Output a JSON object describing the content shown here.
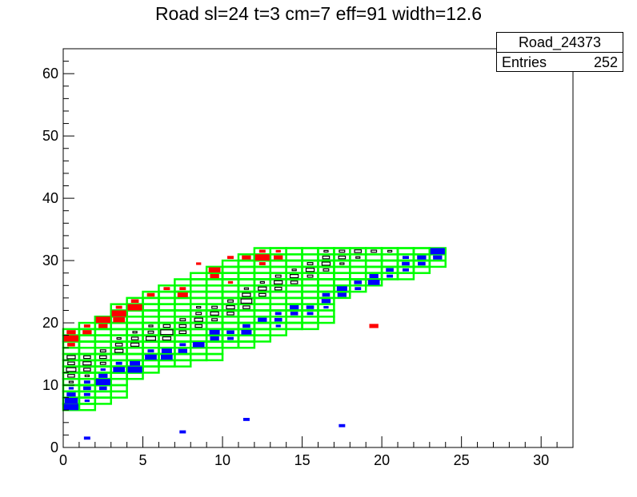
{
  "chart_data": {
    "type": "heatmap",
    "title": "Road sl=24 t=3 cm=7 eff=91 width=12.6",
    "xlabel": "",
    "ylabel": "",
    "xlim": [
      0,
      32
    ],
    "ylim": [
      0,
      64
    ],
    "xticks": [
      0,
      5,
      10,
      15,
      20,
      25,
      30
    ],
    "yticks": [
      0,
      10,
      20,
      30,
      40,
      50,
      60
    ],
    "grid": false,
    "stats": {
      "name": "Road_24373",
      "entries_label": "Entries",
      "entries": "252"
    },
    "road_outline_color": "#00ff00",
    "colors": {
      "red": "#ff0000",
      "blue": "#0000ff",
      "black": "#000000"
    },
    "road_boxes": [
      [
        0,
        6,
        2,
        19
      ],
      [
        1,
        7,
        3,
        20
      ],
      [
        2,
        8,
        4,
        21
      ],
      [
        3,
        11,
        5,
        23
      ],
      [
        4,
        12,
        6,
        24
      ],
      [
        5,
        13,
        7,
        25
      ],
      [
        6,
        13,
        8,
        26
      ],
      [
        7,
        14,
        9,
        27
      ],
      [
        8,
        14,
        10,
        28
      ],
      [
        9,
        16,
        11,
        29
      ],
      [
        10,
        16,
        12,
        30
      ],
      [
        11,
        17,
        13,
        31
      ],
      [
        12,
        18,
        14,
        32
      ],
      [
        13,
        19,
        15,
        32
      ],
      [
        14,
        19,
        16,
        32
      ],
      [
        15,
        20,
        17,
        32
      ],
      [
        16,
        24,
        18,
        32
      ],
      [
        17,
        25,
        19,
        32
      ],
      [
        18,
        26,
        20,
        32
      ],
      [
        19,
        27,
        21,
        32
      ],
      [
        20,
        27,
        22,
        32
      ],
      [
        21,
        28,
        23,
        32
      ],
      [
        22,
        29,
        24,
        32
      ]
    ],
    "red_cells": [
      [
        0.5,
        18,
        0.6
      ],
      [
        0.5,
        17,
        1
      ],
      [
        0.5,
        16,
        0.5
      ],
      [
        1.5,
        19,
        0.4
      ],
      [
        1.5,
        18,
        0.6
      ],
      [
        2.5,
        20,
        1
      ],
      [
        2.5,
        19,
        0.6
      ],
      [
        3.5,
        22,
        0.4
      ],
      [
        3.5,
        21,
        1
      ],
      [
        3.5,
        20,
        0.8
      ],
      [
        4.5,
        23,
        0.5
      ],
      [
        4.5,
        22,
        1
      ],
      [
        5.5,
        24,
        0.5
      ],
      [
        6.5,
        25,
        0.4
      ],
      [
        7.5,
        25,
        0.4
      ],
      [
        7.5,
        24,
        0.7
      ],
      [
        8.5,
        29,
        0.3
      ],
      [
        9.5,
        28,
        0.8
      ],
      [
        9.5,
        27,
        0.6
      ],
      [
        10.5,
        30,
        0.4
      ],
      [
        10.5,
        26,
        0.3
      ],
      [
        11.5,
        30,
        0.6
      ],
      [
        12.5,
        30,
        1
      ],
      [
        12.5,
        29,
        0.4
      ],
      [
        13.5,
        30,
        0.6
      ],
      [
        12.5,
        31,
        0.4
      ],
      [
        13.5,
        31,
        0.3
      ],
      [
        19.5,
        19,
        0.6
      ]
    ],
    "black_cells": [
      [
        0.5,
        14,
        0.6
      ],
      [
        0.5,
        13,
        0.5
      ],
      [
        0.5,
        12,
        0.7
      ],
      [
        0.5,
        11,
        0.5
      ],
      [
        0.5,
        10,
        0.3
      ],
      [
        1.5,
        14,
        0.5
      ],
      [
        1.5,
        13,
        0.6
      ],
      [
        1.5,
        12,
        0.5
      ],
      [
        1.5,
        11,
        0.3
      ],
      [
        2.5,
        15,
        0.4
      ],
      [
        2.5,
        14,
        0.5
      ],
      [
        2.5,
        13,
        0.4
      ],
      [
        3.5,
        17,
        0.3
      ],
      [
        3.5,
        16,
        0.5
      ],
      [
        3.5,
        15,
        0.6
      ],
      [
        4.5,
        18,
        0.3
      ],
      [
        4.5,
        17,
        0.5
      ],
      [
        4.5,
        16,
        0.6
      ],
      [
        5.5,
        19,
        0.3
      ],
      [
        5.5,
        18,
        0.4
      ],
      [
        5.5,
        17,
        0.7
      ],
      [
        6.5,
        19,
        0.5
      ],
      [
        6.5,
        18,
        0.9
      ],
      [
        6.5,
        17,
        0.6
      ],
      [
        7.5,
        20,
        0.4
      ],
      [
        7.5,
        19,
        0.5
      ],
      [
        7.5,
        18,
        0.5
      ],
      [
        8.5,
        22,
        0.3
      ],
      [
        8.5,
        21,
        0.4
      ],
      [
        8.5,
        20,
        0.6
      ],
      [
        8.5,
        19,
        0.5
      ],
      [
        9.5,
        22,
        0.4
      ],
      [
        9.5,
        21,
        0.6
      ],
      [
        9.5,
        20,
        0.4
      ],
      [
        10.5,
        23,
        0.4
      ],
      [
        10.5,
        22,
        0.6
      ],
      [
        10.5,
        21,
        0.5
      ],
      [
        11.5,
        25,
        0.3
      ],
      [
        11.5,
        24,
        0.6
      ],
      [
        11.5,
        23,
        0.8
      ],
      [
        11.5,
        22,
        0.5
      ],
      [
        12.5,
        26,
        0.3
      ],
      [
        12.5,
        25,
        0.6
      ],
      [
        12.5,
        24,
        0.5
      ],
      [
        13.5,
        27,
        0.4
      ],
      [
        13.5,
        26,
        0.6
      ],
      [
        13.5,
        25,
        0.5
      ],
      [
        14.5,
        28,
        0.3
      ],
      [
        14.5,
        27,
        0.6
      ],
      [
        14.5,
        26,
        0.5
      ],
      [
        15.5,
        29,
        0.4
      ],
      [
        15.5,
        28,
        0.6
      ],
      [
        15.5,
        27,
        0.4
      ],
      [
        16.5,
        31,
        0.3
      ],
      [
        16.5,
        30,
        0.5
      ],
      [
        16.5,
        29,
        0.6
      ],
      [
        16.5,
        28,
        0.4
      ],
      [
        17.5,
        31,
        0.4
      ],
      [
        17.5,
        30,
        0.5
      ],
      [
        17.5,
        29,
        0.3
      ],
      [
        18.5,
        31,
        0.5
      ],
      [
        18.5,
        30,
        0.3
      ],
      [
        19.5,
        31,
        0.4
      ],
      [
        20.5,
        31,
        0.3
      ]
    ],
    "blue_cells": [
      [
        0.5,
        9,
        0.3
      ],
      [
        0.5,
        8,
        0.6
      ],
      [
        0.5,
        7,
        0.9
      ],
      [
        0.5,
        6,
        1
      ],
      [
        1.5,
        10,
        0.4
      ],
      [
        1.5,
        9,
        0.5
      ],
      [
        1.5,
        8,
        0.4
      ],
      [
        1.5,
        7,
        0.3
      ],
      [
        2.5,
        12,
        0.3
      ],
      [
        2.5,
        11,
        0.6
      ],
      [
        2.5,
        10,
        1
      ],
      [
        2.5,
        9,
        0.5
      ],
      [
        3.5,
        13,
        0.4
      ],
      [
        3.5,
        12,
        0.8
      ],
      [
        4.5,
        13,
        0.7
      ],
      [
        4.5,
        12,
        1
      ],
      [
        5.5,
        15,
        0.4
      ],
      [
        5.5,
        14,
        0.8
      ],
      [
        6.5,
        15,
        0.7
      ],
      [
        6.5,
        14,
        0.8
      ],
      [
        7.5,
        16,
        0.4
      ],
      [
        7.5,
        15,
        0.6
      ],
      [
        8.5,
        16,
        0.8
      ],
      [
        9.5,
        18,
        0.7
      ],
      [
        9.5,
        17,
        0.6
      ],
      [
        10.5,
        18,
        0.5
      ],
      [
        10.5,
        17,
        0.4
      ],
      [
        11.5,
        19,
        0.5
      ],
      [
        11.5,
        18,
        0.7
      ],
      [
        12.5,
        20,
        0.6
      ],
      [
        13.5,
        21,
        0.4
      ],
      [
        13.5,
        20,
        0.5
      ],
      [
        13.5,
        19,
        0.3
      ],
      [
        14.5,
        22,
        0.6
      ],
      [
        14.5,
        21,
        0.5
      ],
      [
        15.5,
        22,
        0.5
      ],
      [
        15.5,
        21,
        0.4
      ],
      [
        16.5,
        24,
        0.5
      ],
      [
        16.5,
        23,
        0.6
      ],
      [
        16.5,
        22,
        0.3
      ],
      [
        17.5,
        25,
        0.7
      ],
      [
        17.5,
        24,
        0.6
      ],
      [
        18.5,
        26,
        0.5
      ],
      [
        18.5,
        25,
        0.4
      ],
      [
        19.5,
        27,
        0.6
      ],
      [
        19.5,
        26,
        0.8
      ],
      [
        20.5,
        28,
        0.5
      ],
      [
        20.5,
        27,
        0.4
      ],
      [
        21.5,
        29,
        0.5
      ],
      [
        21.5,
        28,
        0.4
      ],
      [
        22.5,
        30,
        0.6
      ],
      [
        22.5,
        29,
        0.5
      ],
      [
        23.5,
        31,
        1
      ],
      [
        23.5,
        30,
        0.6
      ],
      [
        21.5,
        30,
        0.4
      ],
      [
        1.5,
        1,
        0.4
      ],
      [
        7.5,
        2,
        0.4
      ],
      [
        11.5,
        4,
        0.4
      ],
      [
        17.5,
        3,
        0.4
      ]
    ]
  }
}
